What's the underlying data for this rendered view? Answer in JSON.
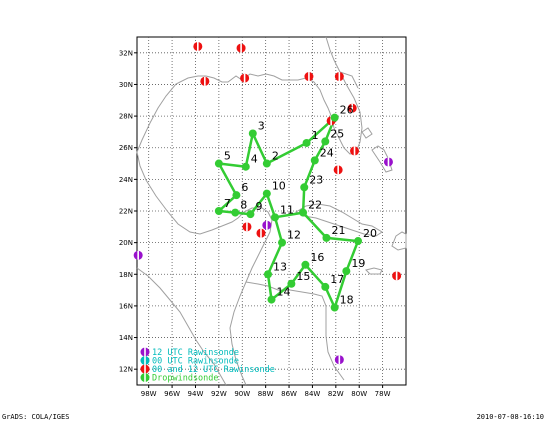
{
  "footer": {
    "left": "GrADS: COLA/IGES",
    "right": "2010-07-08-16:10"
  },
  "map": {
    "lat_range": [
      11,
      33
    ],
    "lon_range": [
      -99,
      -76
    ],
    "lat_ticks": [
      {
        "v": 12,
        "label": "12N"
      },
      {
        "v": 14,
        "label": "14N"
      },
      {
        "v": 16,
        "label": "16N"
      },
      {
        "v": 18,
        "label": "18N"
      },
      {
        "v": 20,
        "label": "20N"
      },
      {
        "v": 22,
        "label": "22N"
      },
      {
        "v": 24,
        "label": "24N"
      },
      {
        "v": 26,
        "label": "26N"
      },
      {
        "v": 28,
        "label": "28N"
      },
      {
        "v": 30,
        "label": "30N"
      },
      {
        "v": 32,
        "label": "32N"
      }
    ],
    "lon_ticks": [
      {
        "v": -98,
        "label": "98W"
      },
      {
        "v": -96,
        "label": "96W"
      },
      {
        "v": -94,
        "label": "94W"
      },
      {
        "v": -92,
        "label": "92W"
      },
      {
        "v": -90,
        "label": "90W"
      },
      {
        "v": -88,
        "label": "88W"
      },
      {
        "v": -86,
        "label": "86W"
      },
      {
        "v": -84,
        "label": "84W"
      },
      {
        "v": -82,
        "label": "82W"
      },
      {
        "v": -80,
        "label": "80W"
      },
      {
        "v": -78,
        "label": "78W"
      }
    ]
  },
  "colors": {
    "track": "#33cc33",
    "red": "#ee1111",
    "purple": "#9911cc",
    "cyan": "#00bbbb",
    "coast": "#a0a0a0",
    "grid": "#555555"
  },
  "dropsondes": [
    {
      "id": "1",
      "lat": 26.3,
      "lon": -84.5
    },
    {
      "id": "2",
      "lat": 25.0,
      "lon": -87.9
    },
    {
      "id": "3",
      "lat": 26.9,
      "lon": -89.1
    },
    {
      "id": "4",
      "lat": 24.8,
      "lon": -89.7
    },
    {
      "id": "5",
      "lat": 25.0,
      "lon": -92.0
    },
    {
      "id": "6",
      "lat": 23.0,
      "lon": -90.5
    },
    {
      "id": "7",
      "lat": 22.0,
      "lon": -92.0
    },
    {
      "id": "8",
      "lat": 21.9,
      "lon": -90.6
    },
    {
      "id": "9",
      "lat": 21.8,
      "lon": -89.3
    },
    {
      "id": "10",
      "lat": 23.1,
      "lon": -87.9
    },
    {
      "id": "11",
      "lat": 21.6,
      "lon": -87.2
    },
    {
      "id": "12",
      "lat": 20.0,
      "lon": -86.6
    },
    {
      "id": "13",
      "lat": 18.0,
      "lon": -87.8
    },
    {
      "id": "14",
      "lat": 16.4,
      "lon": -87.5
    },
    {
      "id": "15",
      "lat": 17.4,
      "lon": -85.8
    },
    {
      "id": "16",
      "lat": 18.6,
      "lon": -84.6
    },
    {
      "id": "17",
      "lat": 17.2,
      "lon": -82.9
    },
    {
      "id": "18",
      "lat": 15.9,
      "lon": -82.1
    },
    {
      "id": "19",
      "lat": 18.2,
      "lon": -81.1
    },
    {
      "id": "20",
      "lat": 20.1,
      "lon": -80.1
    },
    {
      "id": "21",
      "lat": 20.3,
      "lon": -82.8
    },
    {
      "id": "22",
      "lat": 21.9,
      "lon": -84.8
    },
    {
      "id": "23",
      "lat": 23.5,
      "lon": -84.7
    },
    {
      "id": "24",
      "lat": 25.2,
      "lon": -83.8
    },
    {
      "id": "25",
      "lat": 26.4,
      "lon": -82.9
    },
    {
      "id": "26",
      "lat": 27.9,
      "lon": -82.1
    }
  ],
  "track_order": [
    "2",
    "3",
    "4",
    "5",
    "6",
    "7",
    "8",
    "9",
    "10",
    "11",
    "12",
    "13",
    "14",
    "15",
    "16",
    "17",
    "18",
    "19",
    "20",
    "21",
    "22",
    "23",
    "24",
    "25",
    "26",
    "1",
    "2"
  ],
  "extra_track": [
    [
      "11",
      "22"
    ]
  ],
  "rawin_red": [
    {
      "lat": 32.4,
      "lon": -93.8
    },
    {
      "lat": 32.3,
      "lon": -90.1
    },
    {
      "lat": 30.2,
      "lon": -93.2
    },
    {
      "lat": 30.4,
      "lon": -89.8
    },
    {
      "lat": 30.5,
      "lon": -84.3
    },
    {
      "lat": 30.5,
      "lon": -81.7
    },
    {
      "lat": 28.5,
      "lon": -80.6
    },
    {
      "lat": 27.7,
      "lon": -82.4
    },
    {
      "lat": 25.8,
      "lon": -80.4
    },
    {
      "lat": 24.6,
      "lon": -81.8
    },
    {
      "lat": 21.0,
      "lon": -89.6
    },
    {
      "lat": 20.6,
      "lon": -88.4
    },
    {
      "lat": 17.9,
      "lon": -76.8
    }
  ],
  "rawin_purple": [
    {
      "lat": 19.2,
      "lon": -98.9
    },
    {
      "lat": 25.1,
      "lon": -77.5
    },
    {
      "lat": 21.1,
      "lon": -87.9
    },
    {
      "lat": 12.6,
      "lon": -81.7
    }
  ],
  "legend": [
    {
      "label": "12 UTC Rawinsonde",
      "color_key": "purple",
      "text_color_key": "cyan"
    },
    {
      "label": "00 UTC Rawinsonde",
      "color_key": "cyan",
      "text_color_key": "cyan"
    },
    {
      "label": "00 and 12 UTC Rawinsonde",
      "color_key": "red",
      "text_color_key": "cyan"
    },
    {
      "label": "Dropwindsonde",
      "color_key": "track",
      "text_color_key": "track"
    }
  ]
}
